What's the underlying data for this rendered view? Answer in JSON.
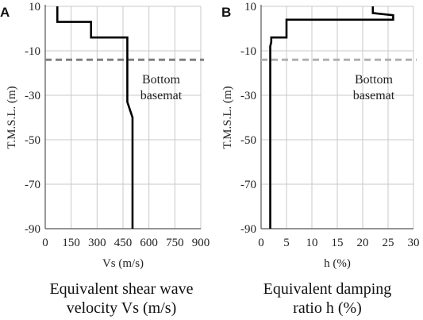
{
  "chart_data": [
    {
      "type": "line",
      "panel_label": "A",
      "xlabel": "Vs (m/s)",
      "ylabel": "T.M.S.L. (m)",
      "xlim": [
        0,
        900
      ],
      "ylim": [
        -90,
        10
      ],
      "xticks": [
        0,
        150,
        300,
        450,
        600,
        750,
        900
      ],
      "yticks": [
        10,
        -10,
        -30,
        -50,
        -70,
        -90
      ],
      "grid": true,
      "series": [
        {
          "x": [
            70,
            70,
            70,
            265,
            265,
            475,
            475,
            475,
            505,
            505
          ],
          "y": [
            10,
            7,
            3,
            3,
            -4,
            -4,
            -7,
            -33,
            -40,
            -90
          ],
          "color": "#000000"
        }
      ],
      "reference_line": {
        "y": -14,
        "label_lines": [
          "Bottom",
          "basemat"
        ],
        "color": "#808080"
      },
      "caption_lines": [
        "Equivalent shear wave",
        "velocity Vs (m/s)"
      ]
    },
    {
      "type": "line",
      "panel_label": "B",
      "xlabel": "h (%)",
      "ylabel": "T.M.S.L. (m)",
      "xlim": [
        0,
        30
      ],
      "ylim": [
        -90,
        10
      ],
      "xticks": [
        0,
        5,
        10,
        15,
        20,
        25,
        30
      ],
      "yticks": [
        10,
        -10,
        -30,
        -50,
        -70,
        -90
      ],
      "grid": true,
      "series": [
        {
          "x": [
            22,
            22,
            26,
            26,
            5,
            5,
            2,
            2,
            1.8,
            1.8
          ],
          "y": [
            10,
            7,
            6,
            4,
            4,
            -4,
            -4,
            -6,
            -8,
            -90
          ],
          "color": "#000000"
        }
      ],
      "reference_line": {
        "y": -14,
        "label_lines": [
          "Bottom",
          "basemat"
        ],
        "color": "#b0b0b0"
      },
      "caption_lines": [
        "Equivalent damping",
        "ratio h (%)"
      ]
    }
  ]
}
